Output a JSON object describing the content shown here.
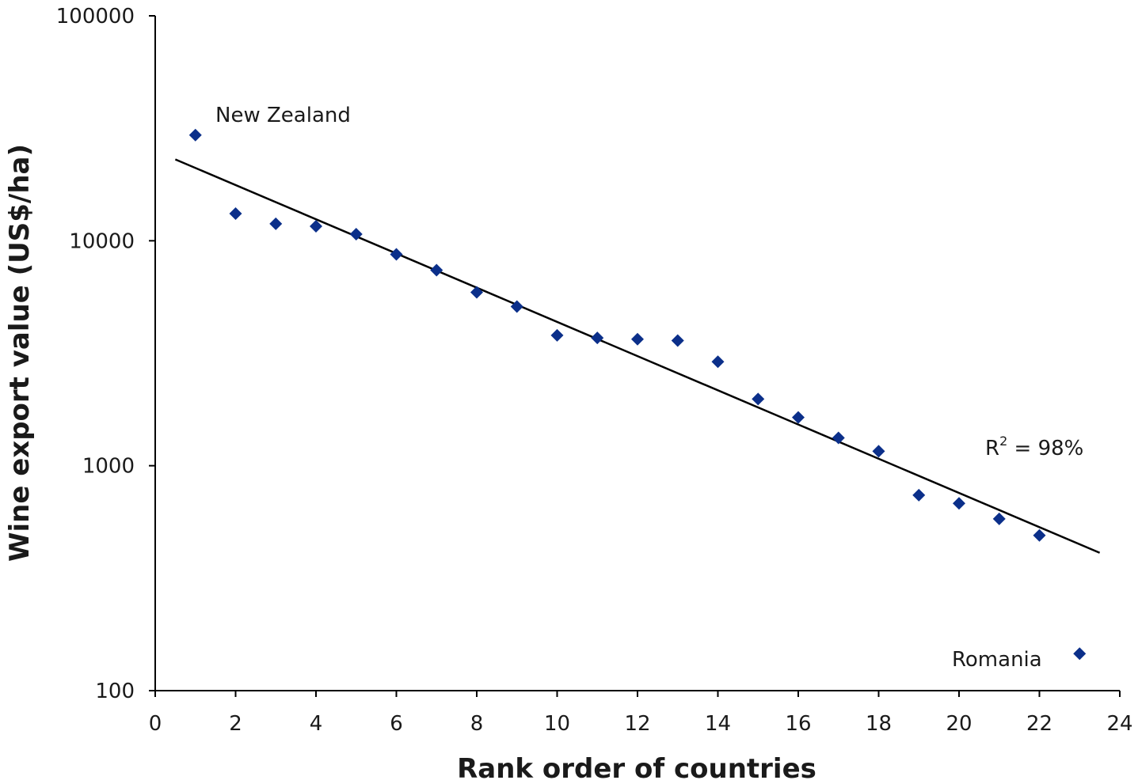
{
  "chart_data": {
    "type": "scatter",
    "xlabel": "Rank order of countries",
    "ylabel": "Wine export value (US$/ha)",
    "xlim": [
      0,
      24
    ],
    "ylim": [
      100,
      100000
    ],
    "yscale": "log",
    "grid": false,
    "x_ticks": [
      "0",
      "2",
      "4",
      "6",
      "8",
      "10",
      "12",
      "14",
      "16",
      "18",
      "20",
      "22",
      "24"
    ],
    "y_ticks": [
      "100",
      "1000",
      "10000",
      "100000"
    ],
    "marker_color": "#0b2f8a",
    "marker": "diamond",
    "points": [
      {
        "x": 1,
        "y": 29500
      },
      {
        "x": 2,
        "y": 13200
      },
      {
        "x": 3,
        "y": 11900
      },
      {
        "x": 4,
        "y": 11600
      },
      {
        "x": 5,
        "y": 10700
      },
      {
        "x": 6,
        "y": 8700
      },
      {
        "x": 7,
        "y": 7400
      },
      {
        "x": 8,
        "y": 5900
      },
      {
        "x": 9,
        "y": 5100
      },
      {
        "x": 10,
        "y": 3800
      },
      {
        "x": 11,
        "y": 3700
      },
      {
        "x": 12,
        "y": 3650
      },
      {
        "x": 13,
        "y": 3600
      },
      {
        "x": 14,
        "y": 2900
      },
      {
        "x": 15,
        "y": 1980
      },
      {
        "x": 16,
        "y": 1640
      },
      {
        "x": 17,
        "y": 1330
      },
      {
        "x": 18,
        "y": 1160
      },
      {
        "x": 19,
        "y": 740
      },
      {
        "x": 20,
        "y": 680
      },
      {
        "x": 21,
        "y": 580
      },
      {
        "x": 22,
        "y": 490
      },
      {
        "x": 23,
        "y": 146
      }
    ],
    "trendline": {
      "type": "exponential",
      "x_start": 0.5,
      "x_end": 23.5,
      "y_start": 23000,
      "y_end": 410
    },
    "annotations": [
      {
        "id": "new-zealand",
        "text": "New Zealand"
      },
      {
        "id": "romania",
        "text": "Romania"
      },
      {
        "id": "r2",
        "base": "R",
        "sup": "2",
        "rest": " = 98%"
      }
    ]
  }
}
